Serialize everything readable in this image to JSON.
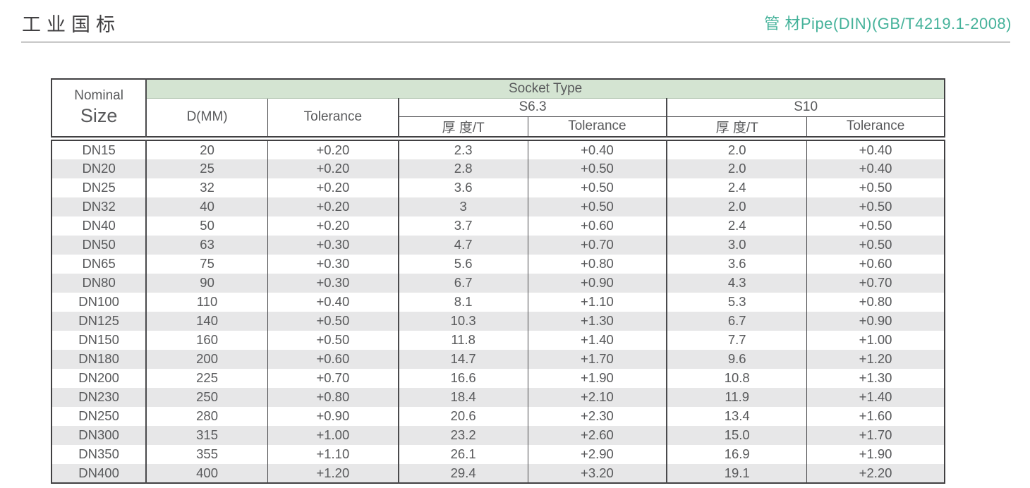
{
  "page": {
    "title_left": "工业国标",
    "title_right": "管 材Pipe(DIN)(GB/T4219.1-2008)"
  },
  "colors": {
    "accent_teal": "#45b29a",
    "header_green": "#d4e4d2",
    "row_alt_gray": "#e7e7e8",
    "text_gray": "#58595b"
  },
  "table": {
    "header": {
      "nominal_line1": "Nominal",
      "nominal_line2": "Size",
      "socket_type": "Socket Type",
      "d_mm": "D(MM)",
      "tolerance": "Tolerance",
      "s63": "S6.3",
      "s10": "S10",
      "thickness": "厚 度/T"
    },
    "rows": [
      [
        "DN15",
        "20",
        "+0.20",
        "2.3",
        "+0.40",
        "2.0",
        "+0.40"
      ],
      [
        "DN20",
        "25",
        "+0.20",
        "2.8",
        "+0.50",
        "2.0",
        "+0.40"
      ],
      [
        "DN25",
        "32",
        "+0.20",
        "3.6",
        "+0.50",
        "2.4",
        "+0.50"
      ],
      [
        "DN32",
        "40",
        "+0.20",
        "3",
        "+0.50",
        "2.0",
        "+0.50"
      ],
      [
        "DN40",
        "50",
        "+0.20",
        "3.7",
        "+0.60",
        "2.4",
        "+0.50"
      ],
      [
        "DN50",
        "63",
        "+0.30",
        "4.7",
        "+0.70",
        "3.0",
        "+0.50"
      ],
      [
        "DN65",
        "75",
        "+0.30",
        "5.6",
        "+0.80",
        "3.6",
        "+0.60"
      ],
      [
        "DN80",
        "90",
        "+0.30",
        "6.7",
        "+0.90",
        "4.3",
        "+0.70"
      ],
      [
        "DN100",
        "110",
        "+0.40",
        "8.1",
        "+1.10",
        "5.3",
        "+0.80"
      ],
      [
        "DN125",
        "140",
        "+0.50",
        "10.3",
        "+1.30",
        "6.7",
        "+0.90"
      ],
      [
        "DN150",
        "160",
        "+0.50",
        "11.8",
        "+1.40",
        "7.7",
        "+1.00"
      ],
      [
        "DN180",
        "200",
        "+0.60",
        "14.7",
        "+1.70",
        "9.6",
        "+1.20"
      ],
      [
        "DN200",
        "225",
        "+0.70",
        "16.6",
        "+1.90",
        "10.8",
        "+1.30"
      ],
      [
        "DN230",
        "250",
        "+0.80",
        "18.4",
        "+2.10",
        "11.9",
        "+1.40"
      ],
      [
        "DN250",
        "280",
        "+0.90",
        "20.6",
        "+2.30",
        "13.4",
        "+1.60"
      ],
      [
        "DN300",
        "315",
        "+1.00",
        "23.2",
        "+2.60",
        "15.0",
        "+1.70"
      ],
      [
        "DN350",
        "355",
        "+1.10",
        "26.1",
        "+2.90",
        "16.9",
        "+1.90"
      ],
      [
        "DN400",
        "400",
        "+1.20",
        "29.4",
        "+3.20",
        "19.1",
        "+2.20"
      ]
    ]
  }
}
